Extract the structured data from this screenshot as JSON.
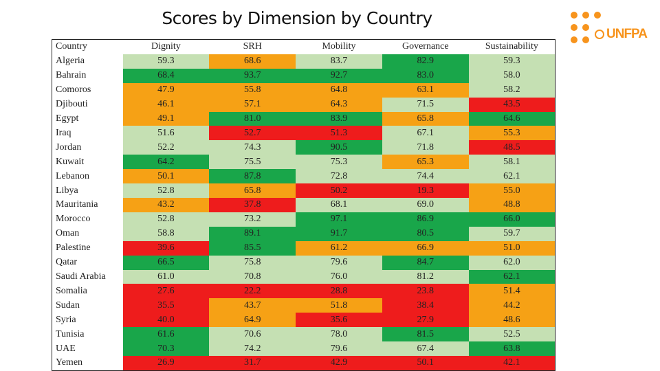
{
  "title": "Scores by Dimension by Country",
  "logo": {
    "text": "UNFPA"
  },
  "colors": {
    "dark_green": "#19a64a",
    "light_green": "#c5e0b3",
    "orange": "#f6a115",
    "red": "#ee1c1c",
    "logo_orange": "#f7941d"
  },
  "table": {
    "headers": [
      "Country",
      "Dignity",
      "SRH",
      "Mobility",
      "Governance",
      "Sustainability"
    ],
    "rows": [
      {
        "country": "Algeria",
        "values": [
          "59.3",
          "68.6",
          "83.7",
          "82.9",
          "59.3"
        ],
        "colors": [
          "light",
          "orange",
          "light",
          "dark",
          "light"
        ]
      },
      {
        "country": "Bahrain",
        "values": [
          "68.4",
          "93.7",
          "92.7",
          "83.0",
          "58.0"
        ],
        "colors": [
          "dark",
          "dark",
          "dark",
          "dark",
          "light"
        ]
      },
      {
        "country": "Comoros",
        "values": [
          "47.9",
          "55.8",
          "64.8",
          "63.1",
          "58.2"
        ],
        "colors": [
          "orange",
          "orange",
          "orange",
          "orange",
          "light"
        ]
      },
      {
        "country": "Djibouti",
        "values": [
          "46.1",
          "57.1",
          "64.3",
          "71.5",
          "43.5"
        ],
        "colors": [
          "orange",
          "orange",
          "orange",
          "light",
          "red"
        ]
      },
      {
        "country": "Egypt",
        "values": [
          "49.1",
          "81.0",
          "83.9",
          "65.8",
          "64.6"
        ],
        "colors": [
          "orange",
          "dark",
          "dark",
          "orange",
          "dark"
        ]
      },
      {
        "country": "Iraq",
        "values": [
          "51.6",
          "52.7",
          "51.3",
          "67.1",
          "55.3"
        ],
        "colors": [
          "light",
          "red",
          "red",
          "light",
          "orange"
        ]
      },
      {
        "country": "Jordan",
        "values": [
          "52.2",
          "74.3",
          "90.5",
          "71.8",
          "48.5"
        ],
        "colors": [
          "light",
          "light",
          "dark",
          "light",
          "red"
        ]
      },
      {
        "country": "Kuwait",
        "values": [
          "64.2",
          "75.5",
          "75.3",
          "65.3",
          "58.1"
        ],
        "colors": [
          "dark",
          "light",
          "light",
          "orange",
          "light"
        ]
      },
      {
        "country": "Lebanon",
        "values": [
          "50.1",
          "87.8",
          "72.8",
          "74.4",
          "62.1"
        ],
        "colors": [
          "orange",
          "dark",
          "light",
          "light",
          "light"
        ]
      },
      {
        "country": "Libya",
        "values": [
          "52.8",
          "65.8",
          "50.2",
          "19.3",
          "55.0"
        ],
        "colors": [
          "light",
          "orange",
          "red",
          "red",
          "orange"
        ]
      },
      {
        "country": "Mauritania",
        "values": [
          "43.2",
          "37.8",
          "68.1",
          "69.0",
          "48.8"
        ],
        "colors": [
          "orange",
          "red",
          "light",
          "light",
          "orange"
        ]
      },
      {
        "country": "Morocco",
        "values": [
          "52.8",
          "73.2",
          "97.1",
          "86.9",
          "66.0"
        ],
        "colors": [
          "light",
          "light",
          "dark",
          "dark",
          "dark"
        ]
      },
      {
        "country": "Oman",
        "values": [
          "58.8",
          "89.1",
          "91.7",
          "80.5",
          "59.7"
        ],
        "colors": [
          "light",
          "dark",
          "dark",
          "dark",
          "light"
        ]
      },
      {
        "country": "Palestine",
        "values": [
          "39.6",
          "85.5",
          "61.2",
          "66.9",
          "51.0"
        ],
        "colors": [
          "red",
          "dark",
          "orange",
          "orange",
          "orange"
        ]
      },
      {
        "country": "Qatar",
        "values": [
          "66.5",
          "75.8",
          "79.6",
          "84.7",
          "62.0"
        ],
        "colors": [
          "dark",
          "light",
          "light",
          "dark",
          "light"
        ]
      },
      {
        "country": "Saudi Arabia",
        "values": [
          "61.0",
          "70.8",
          "76.0",
          "81.2",
          "62.1"
        ],
        "colors": [
          "light",
          "light",
          "light",
          "light",
          "dark"
        ]
      },
      {
        "country": "Somalia",
        "values": [
          "27.6",
          "22.2",
          "28.8",
          "23.8",
          "51.4"
        ],
        "colors": [
          "red",
          "red",
          "red",
          "red",
          "orange"
        ]
      },
      {
        "country": "Sudan",
        "values": [
          "35.5",
          "43.7",
          "51.8",
          "38.4",
          "44.2"
        ],
        "colors": [
          "red",
          "orange",
          "orange",
          "red",
          "orange"
        ]
      },
      {
        "country": "Syria",
        "values": [
          "40.0",
          "64.9",
          "35.6",
          "27.9",
          "48.6"
        ],
        "colors": [
          "red",
          "orange",
          "red",
          "red",
          "orange"
        ]
      },
      {
        "country": "Tunisia",
        "values": [
          "61.6",
          "70.6",
          "78.0",
          "81.5",
          "52.5"
        ],
        "colors": [
          "dark",
          "light",
          "light",
          "dark",
          "light"
        ]
      },
      {
        "country": "UAE",
        "values": [
          "70.3",
          "74.2",
          "79.6",
          "67.4",
          "63.8"
        ],
        "colors": [
          "dark",
          "light",
          "light",
          "light",
          "dark"
        ]
      },
      {
        "country": "Yemen",
        "values": [
          "26.9",
          "31.7",
          "42.9",
          "50.1",
          "42.1"
        ],
        "colors": [
          "red",
          "red",
          "red",
          "red",
          "red"
        ]
      }
    ]
  }
}
